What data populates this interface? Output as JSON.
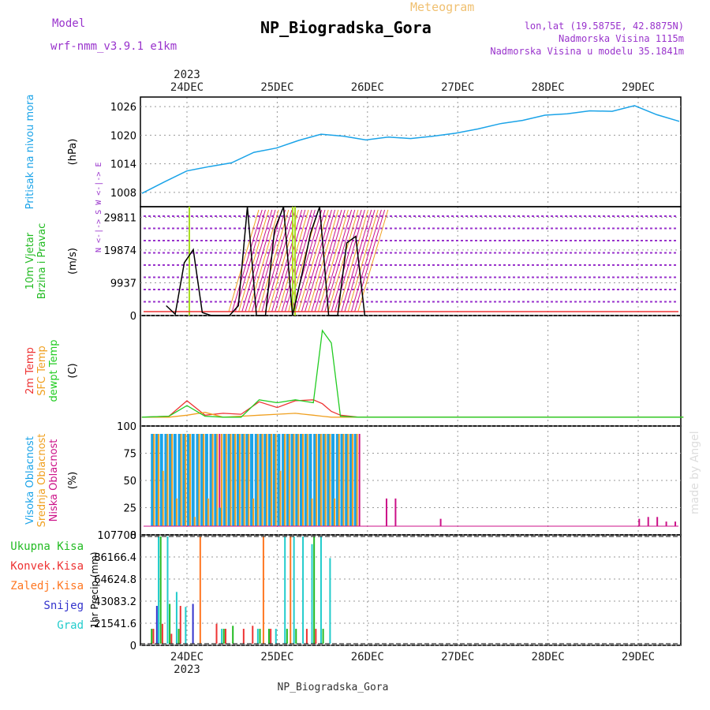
{
  "header": {
    "model_label": "Model",
    "model_name": "wrf-nmm_v3.9.1 e1km",
    "meteogram_label": "Meteogram",
    "station_name": "NP_Biogradska_Gora",
    "coords": "lon,lat (19.5875E, 42.8875N)",
    "elevation": "Nadmorska Visina 1115m",
    "model_elevation": "Nadmorska Visina u modelu 35.1841m",
    "footer_name": "NP_Biogradska_Gora",
    "watermark": "made by Angel"
  },
  "time_axis": {
    "top_year": "2023",
    "bottom_year": "2023",
    "days": [
      "24DEC",
      "25DEC",
      "26DEC",
      "27DEC",
      "28DEC",
      "29DEC"
    ]
  },
  "colors": {
    "pressure": "#1aa3e8",
    "wind_label": "#22bb22",
    "temp2m": "#ee3333",
    "sfc": "#f0a020",
    "dewpt": "#22cc22",
    "cloud_high": "#1aa3e8",
    "cloud_mid": "#f0a020",
    "cloud_low": "#cc1188",
    "purple": "#9933cc",
    "rain_total": "#22bb22",
    "rain_conv": "#ee3333",
    "rain_frz": "#ff7722",
    "snow": "#3333cc",
    "hail": "#22cccc",
    "grid": "#999999"
  },
  "chart_data": [
    {
      "type": "line",
      "panel": "pressure",
      "title": "",
      "ylabels": [
        "Pritisak na nivou mora",
        "(hPa)"
      ],
      "yticks": [
        "1026",
        "1020",
        "1014",
        "1008"
      ],
      "ylim": [
        1005,
        1028
      ],
      "x": [
        0,
        0.25,
        0.5,
        0.75,
        1.0,
        1.25,
        1.5,
        1.75,
        2.0,
        2.25,
        2.5,
        2.75,
        3.0,
        3.25,
        3.5,
        3.75,
        4.0,
        4.25,
        4.5,
        4.75,
        5.0,
        5.25,
        5.5,
        5.75,
        6.0
      ],
      "series": [
        {
          "values": [
            1007.8,
            1010.2,
            1012.5,
            1013.4,
            1014.2,
            1016.4,
            1017.3,
            1018.9,
            1020.2,
            1019.8,
            1019.0,
            1019.6,
            1019.3,
            1019.8,
            1020.4,
            1021.3,
            1022.4,
            1023.1,
            1024.2,
            1024.5,
            1025.1,
            1025.0,
            1026.2,
            1024.3,
            1022.9
          ]
        }
      ]
    },
    {
      "type": "line",
      "panel": "wind",
      "title": "",
      "ylabels": [
        "10m Vjetar",
        "Brzina i Pravac",
        "(m/s)"
      ],
      "yticks": [
        "29811",
        "19874",
        "9937",
        "0"
      ],
      "ylim": [
        0,
        33000
      ],
      "legend_text": "N <-|-> S   W <-|-> E",
      "x": [
        0.1,
        0.2,
        0.3,
        0.4,
        0.5,
        0.6,
        0.7,
        0.8,
        0.9,
        1.0,
        1.1,
        1.2,
        1.3,
        1.4,
        1.5,
        1.6,
        1.7,
        1.8,
        1.9,
        2.0,
        2.1,
        2.2,
        2.3
      ],
      "series": [
        {
          "values": [
            3000,
            400,
            16000,
            20000,
            900,
            0,
            0,
            0,
            3000,
            33000,
            0,
            0,
            26000,
            33000,
            0,
            12000,
            25000,
            33000,
            0,
            0,
            22000,
            24000,
            0
          ]
        }
      ]
    },
    {
      "type": "line",
      "panel": "temperature",
      "title": "",
      "ylabels": [
        "2m Temp",
        "SFC Temp",
        "dewpt Temp",
        "(C)"
      ],
      "yticks": [],
      "ylim": [
        0,
        10
      ],
      "x": [
        0,
        0.3,
        0.5,
        0.7,
        0.9,
        1.1,
        1.3,
        1.5,
        1.7,
        1.9,
        2.0,
        2.1,
        2.2,
        2.4,
        3.0,
        4.0,
        5.0,
        6.0
      ],
      "series": [
        {
          "name": "2m Temp",
          "values": [
            0.1,
            0.2,
            1.8,
            0.3,
            0.5,
            0.4,
            1.7,
            1.1,
            1.8,
            1.9,
            1.5,
            0.7,
            0.3,
            0.1,
            0.1,
            0.1,
            0.1,
            0.1
          ]
        },
        {
          "name": "SFC Temp",
          "values": [
            0.1,
            0.1,
            0.3,
            0.6,
            0.1,
            0.2,
            0.3,
            0.4,
            0.5,
            0.3,
            0.2,
            0.1,
            0.1,
            0.1,
            0.1,
            0.1,
            0.1,
            0.1
          ]
        },
        {
          "name": "dewpt Temp",
          "values": [
            0.1,
            0.2,
            1.3,
            0.2,
            0.1,
            0.1,
            1.9,
            1.6,
            1.9,
            1.6,
            9.1,
            7.8,
            0.2,
            0.1,
            0.1,
            0.1,
            0.1,
            0.1
          ]
        }
      ]
    },
    {
      "type": "bar",
      "panel": "clouds",
      "title": "",
      "ylabels": [
        "Visoka Oblacnost",
        "Srednja Oblacnost",
        "Niska Oblacnost",
        "(%)"
      ],
      "yticks": [
        "100",
        "75",
        "50",
        "25",
        "0"
      ],
      "ylim": [
        0,
        100
      ],
      "x": [
        0.05,
        0.1,
        0.15,
        0.2,
        0.25,
        0.3,
        0.35,
        0.4,
        0.45,
        0.5,
        0.55,
        0.6,
        0.65,
        0.7,
        0.75,
        0.8,
        0.85,
        0.9,
        0.95,
        1.0,
        1.05,
        1.1,
        1.15,
        1.2,
        1.25,
        1.3,
        1.35,
        1.4,
        1.45,
        1.5,
        1.55,
        1.6,
        1.65,
        1.7,
        1.75,
        1.8,
        1.85,
        1.9,
        1.95,
        2.0,
        2.05,
        2.1,
        2.15,
        2.2,
        2.25,
        2.3,
        2.6,
        2.7,
        3.2,
        5.4,
        5.5,
        5.6,
        5.7,
        5.8
      ],
      "series": [
        {
          "name": "Visoka Oblacnost",
          "values": [
            100,
            100,
            100,
            100,
            100,
            100,
            100,
            100,
            100,
            100,
            100,
            100,
            100,
            100,
            100,
            20,
            100,
            100,
            100,
            100,
            100,
            100,
            100,
            100,
            100,
            100,
            100,
            100,
            100,
            100,
            100,
            100,
            100,
            100,
            100,
            100,
            100,
            100,
            100,
            100,
            100,
            100,
            100,
            100,
            100,
            100,
            0,
            0,
            0,
            0,
            0,
            0,
            0,
            0
          ]
        },
        {
          "name": "Srednja Oblacnost",
          "values": [
            100,
            100,
            60,
            100,
            100,
            30,
            100,
            100,
            100,
            10,
            100,
            100,
            30,
            100,
            100,
            100,
            100,
            100,
            100,
            100,
            100,
            100,
            30,
            100,
            100,
            100,
            100,
            100,
            60,
            100,
            100,
            100,
            100,
            100,
            100,
            30,
            100,
            100,
            100,
            100,
            30,
            100,
            100,
            100,
            100,
            100,
            0,
            0,
            0,
            0,
            0,
            0,
            0,
            0
          ]
        },
        {
          "name": "Niska Oblacnost",
          "values": [
            100,
            30,
            100,
            100,
            100,
            100,
            10,
            100,
            100,
            100,
            100,
            30,
            100,
            100,
            100,
            30,
            100,
            100,
            100,
            100,
            100,
            100,
            100,
            100,
            100,
            30,
            100,
            100,
            100,
            100,
            100,
            100,
            100,
            30,
            100,
            100,
            100,
            100,
            100,
            100,
            100,
            100,
            100,
            100,
            100,
            100,
            30,
            30,
            8,
            8,
            10,
            10,
            5,
            5
          ]
        }
      ]
    },
    {
      "type": "bar",
      "panel": "precipitation",
      "title": "",
      "ylabels": [
        "Ukupna Kisa",
        "Konvek.Kisa",
        "Zaledj.Kisa",
        "Snijeg",
        "Grad",
        "1hr Precip (mm)"
      ],
      "yticks": [
        "107708",
        "86166.4",
        "64624.8",
        "43083.2",
        "21541.6",
        "0"
      ],
      "ylim": [
        0,
        107708
      ],
      "x": [
        0.05,
        0.15,
        0.25,
        0.35,
        0.45,
        0.55,
        0.65,
        0.75,
        0.85,
        0.95,
        1.05,
        1.15,
        1.25,
        1.35,
        1.45,
        1.55,
        1.65,
        1.75,
        1.85,
        1.95,
        2.05,
        2.15,
        2.25
      ],
      "series": [
        {
          "name": "Ukupna Kisa",
          "values": [
            15000,
            107708,
            40000,
            15000,
            0,
            0,
            0,
            0,
            15000,
            18000,
            0,
            0,
            15000,
            15000,
            0,
            15000,
            15000,
            0,
            107708,
            15000,
            0,
            0,
            0
          ]
        },
        {
          "name": "Konvek.Kisa",
          "values": [
            15000,
            20000,
            10000,
            38000,
            0,
            0,
            0,
            20000,
            15000,
            0,
            15000,
            18000,
            0,
            15000,
            0,
            0,
            0,
            15000,
            15000,
            0,
            0,
            0,
            0
          ]
        },
        {
          "name": "Zaledj.Kisa",
          "values": [
            0,
            0,
            0,
            0,
            0,
            107708,
            0,
            0,
            0,
            0,
            0,
            0,
            107708,
            0,
            0,
            107708,
            0,
            0,
            0,
            0,
            0,
            0,
            0
          ]
        },
        {
          "name": "Snijeg",
          "values": [
            38000,
            0,
            0,
            0,
            40000,
            0,
            0,
            0,
            0,
            0,
            0,
            0,
            0,
            0,
            0,
            0,
            0,
            0,
            0,
            0,
            0,
            0,
            0
          ]
        },
        {
          "name": "Grad",
          "values": [
            107708,
            107708,
            52000,
            37000,
            0,
            0,
            0,
            15000,
            0,
            0,
            0,
            15000,
            0,
            15000,
            107708,
            107708,
            107708,
            100000,
            107708,
            86000,
            0,
            0,
            0
          ]
        }
      ]
    }
  ]
}
